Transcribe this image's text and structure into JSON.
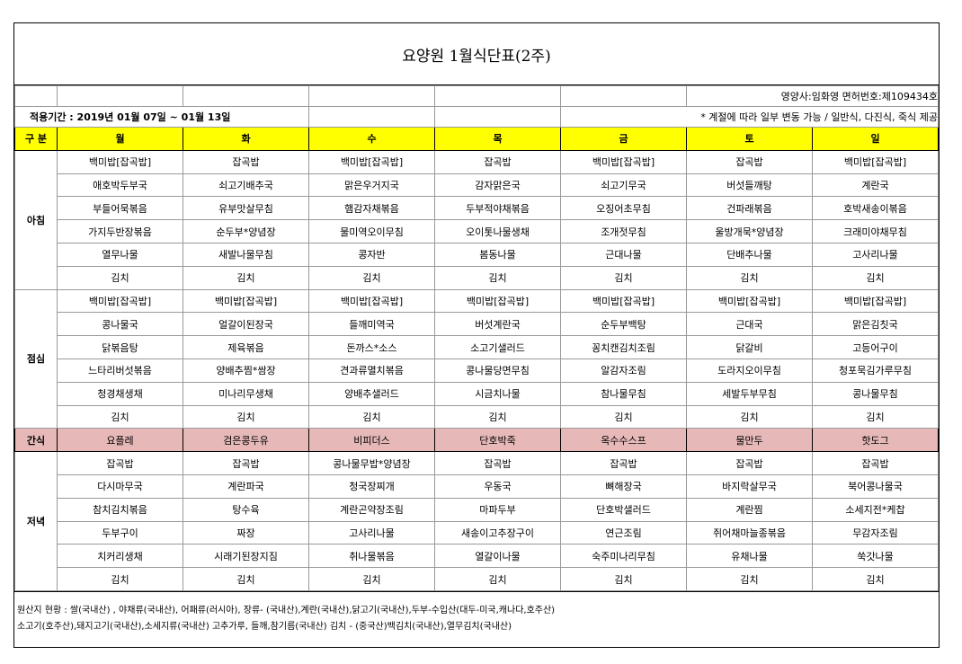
{
  "title": "요양원 1월식단표(2주)",
  "dietitian": "영양사:임화영  면허번호:제109434호",
  "period": "적용기간 : 2019년 01월 07일 ~ 01월 13일",
  "note": "* 계절에 따라 일부 변동 가능 / 일반식, 다진식, 죽식 제공",
  "header": [
    "구 분",
    "월",
    "화",
    "수",
    "목",
    "금",
    "토",
    "일"
  ],
  "sections": [
    {
      "label": "아침",
      "rows": [
        [
          "백미밥[잡곡밥]",
          "잡곡밥",
          "백미밥[잡곡밥]",
          "잡곡밥",
          "백미밥[잡곡밥]",
          "잡곡밥",
          "백미밥[잡곡밥]"
        ],
        [
          "애호박두부국",
          "쇠고기배추국",
          "맑은우거지국",
          "감자맑은국",
          "쇠고기무국",
          "버섯들깨탕",
          "계란국"
        ],
        [
          "부들어묵볶음",
          "유부맛살무침",
          "햄감자채볶음",
          "두부적야채볶음",
          "오징어초무침",
          "건파래볶음",
          "호박새송이볶음"
        ],
        [
          "가지두반장볶음",
          "순두부*양념장",
          "물미역오이무침",
          "오이톳나물생채",
          "조개젓무침",
          "울방개묵*양념장",
          "크래미야채무침"
        ],
        [
          "열무나물",
          "새발나물무침",
          "콩자반",
          "봄동나물",
          "근대나물",
          "단배추나물",
          "고사리나물"
        ],
        [
          "김치",
          "김치",
          "김치",
          "김치",
          "김치",
          "김치",
          "김치"
        ]
      ]
    },
    {
      "label": "점심",
      "rows": [
        [
          "백미밥[잡곡밥]",
          "백미밥[잡곡밥]",
          "백미밥[잡곡밥]",
          "백미밥[잡곡밥]",
          "백미밥[잡곡밥]",
          "백미밥[잡곡밥]",
          "백미밥[잡곡밥]"
        ],
        [
          "콩나물국",
          "얼갈이된장국",
          "들깨미역국",
          "버섯계란국",
          "순두부백탕",
          "근대국",
          "맑은김칫국"
        ],
        [
          "닭볶음탕",
          "제육볶음",
          "돈까스*소스",
          "소고기샐러드",
          "꽁치캔김치조림",
          "닭갈비",
          "고등어구이"
        ],
        [
          "느타리버섯볶음",
          "양배추찜*쌈장",
          "견과류멸치볶음",
          "콩나물당면무침",
          "알감자조림",
          "도라지오이무침",
          "청포묵김가루무침"
        ],
        [
          "청경채생채",
          "미나리무생채",
          "양배추샐러드",
          "시금치나물",
          "참나물무침",
          "세발두부무침",
          "콩나물무침"
        ],
        [
          "김치",
          "김치",
          "김치",
          "김치",
          "김치",
          "김치",
          "김치"
        ]
      ]
    },
    {
      "label": "간식",
      "rows": [
        [
          "요플레",
          "검은콩두유",
          "비피더스",
          "단호박죽",
          "옥수수스프",
          "물만두",
          "핫도그"
        ]
      ]
    },
    {
      "label": "저녁",
      "rows": [
        [
          "잡곡밥",
          "잡곡밥",
          "콩나물무밥*양념장",
          "잡곡밥",
          "잡곡밥",
          "잡곡밥",
          "잡곡밥"
        ],
        [
          "다시마무국",
          "계란파국",
          "청국장찌개",
          "우동국",
          "뼈해장국",
          "바지락살무국",
          "북어콩나물국"
        ],
        [
          "참치김치볶음",
          "탕수육",
          "계란곤약장조림",
          "마파두부",
          "단호박샐러드",
          "계란찜",
          "소세지전*케찹"
        ],
        [
          "두부구이",
          "짜장",
          "고사리나물",
          "새송이고추장구이",
          "연근조림",
          "쥐어채마늘종볶음",
          "무감자조림"
        ],
        [
          "치커리생채",
          "시래기된장지짐",
          "취나물볶음",
          "열갈이나물",
          "숙주미나리무침",
          "유채나물",
          "쑥갓나물"
        ],
        [
          "김치",
          "김치",
          "김치",
          "김치",
          "김치",
          "김치",
          "김치"
        ]
      ]
    }
  ],
  "footer": [
    "원산지 현황 : 쌀(국내산) , 야채류(국내산), 어패류(러시아), 장류- (국내산),계란(국내산),닭고기(국내산),두부-수입산(대두-미국,캐나다,호주산)",
    "소고기(호주산),돼지고기(국내산),소세지류(국내산) 고추가루, 들깨,참기름(국내산) 김치 - (중국산)백김치(국내산),열무김치(국내산)"
  ]
}
